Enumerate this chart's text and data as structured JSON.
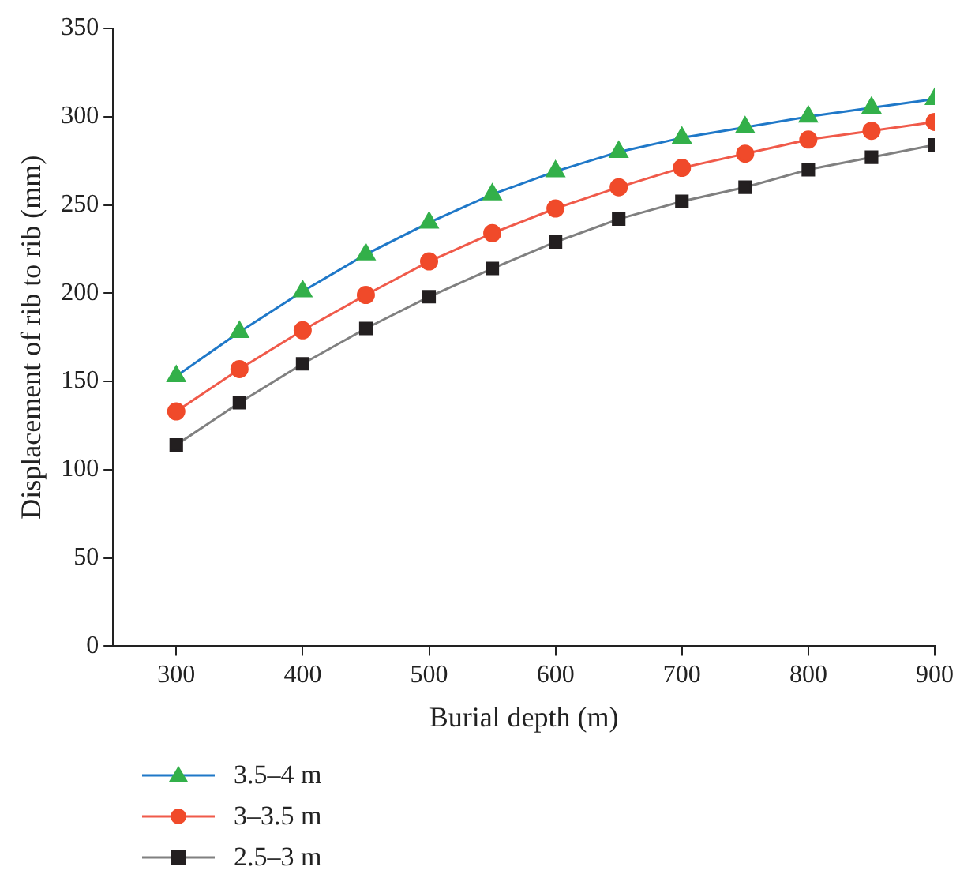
{
  "chart_data": {
    "type": "line",
    "xlabel": "Burial depth (m)",
    "ylabel": "Displacement of rib to rib (mm)",
    "x": [
      300,
      350,
      400,
      450,
      500,
      550,
      600,
      650,
      700,
      750,
      800,
      850,
      900
    ],
    "series": [
      {
        "name": "3.5–4 m",
        "color": "#1f78c8",
        "marker": "triangle",
        "colors": [
          "#33b04a",
          "#33b04a",
          "#33b04a",
          "#33b04a",
          "#33b04a",
          "#33b04a",
          "#33b04a",
          "#33b04a",
          "#33b04a",
          "#33b04a",
          "#33b04a",
          "#33b04a",
          "#33b04a"
        ],
        "values": [
          153,
          178,
          201,
          222,
          240,
          256,
          269,
          280,
          288,
          294,
          300,
          305,
          310
        ]
      },
      {
        "name": "3–3.5 m",
        "color": "#f05a4a",
        "marker": "circle",
        "colors": [
          "#f04a2a",
          "#f04a2a",
          "#f04a2a",
          "#f04a2a",
          "#f04a2a",
          "#f04a2a",
          "#f04a2a",
          "#f04a2a",
          "#f04a2a",
          "#f04a2a",
          "#f04a2a",
          "#f04a2a",
          "#f04a2a"
        ],
        "values": [
          133,
          157,
          179,
          199,
          218,
          234,
          248,
          260,
          271,
          279,
          287,
          292,
          297
        ]
      },
      {
        "name": "2.5–3 m",
        "color": "#808080",
        "marker": "square",
        "colors": [
          "#231f20",
          "#231f20",
          "#231f20",
          "#231f20",
          "#231f20",
          "#231f20",
          "#231f20",
          "#231f20",
          "#231f20",
          "#231f20",
          "#231f20",
          "#231f20",
          "#231f20"
        ],
        "values": [
          114,
          138,
          160,
          180,
          198,
          214,
          229,
          242,
          252,
          260,
          270,
          277,
          284
        ]
      }
    ],
    "xlim": [
      250,
      900
    ],
    "xticks": [
      300,
      400,
      500,
      600,
      700,
      800,
      900
    ],
    "ylim": [
      0,
      350
    ],
    "yticks": [
      0,
      50,
      100,
      150,
      200,
      250,
      300,
      350
    ],
    "grid": false,
    "legend": "bottom left",
    "line_style": "solid"
  }
}
